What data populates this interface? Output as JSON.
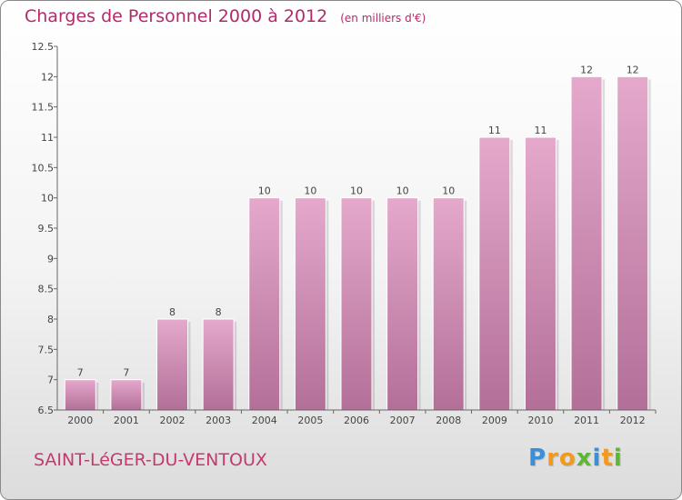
{
  "chart_data": {
    "type": "bar",
    "title": "Charges de Personnel 2000 à 2012",
    "subtitle": "(en milliers d'€)",
    "xlabel": "",
    "ylabel": "",
    "categories": [
      "2000",
      "2001",
      "2002",
      "2003",
      "2004",
      "2005",
      "2006",
      "2007",
      "2008",
      "2009",
      "2010",
      "2011",
      "2012"
    ],
    "values": [
      7,
      7,
      8,
      8,
      10,
      10,
      10,
      10,
      10,
      11,
      11,
      12,
      12
    ],
    "data_labels": [
      "7",
      "7",
      "8",
      "8",
      "10",
      "10",
      "10",
      "10",
      "10",
      "11",
      "11",
      "12",
      "12"
    ],
    "ylim": [
      6.5,
      12.5
    ],
    "yticks": [
      6.5,
      7,
      7.5,
      8,
      8.5,
      9,
      9.5,
      10,
      10.5,
      11,
      11.5,
      12,
      12.5
    ],
    "ytick_labels": [
      "6.5",
      "7",
      "7.5",
      "8",
      "8.5",
      "9",
      "9.5",
      "10",
      "10.5",
      "11",
      "11.5",
      "12",
      "12.5"
    ],
    "grid": false,
    "legend": "none",
    "bar_color_top": "#e5a9cc",
    "bar_color_bottom": "#b36f98"
  },
  "commune": "SAINT-LéGER-DU-VENTOUX",
  "logo": {
    "letters": [
      "P",
      "r",
      "o",
      "x",
      "i",
      "t",
      "i"
    ],
    "colors": [
      "#3a8fd6",
      "#f29a1f",
      "#f29a1f",
      "#5cb832",
      "#3a8fd6",
      "#f29a1f",
      "#5cb832"
    ]
  }
}
